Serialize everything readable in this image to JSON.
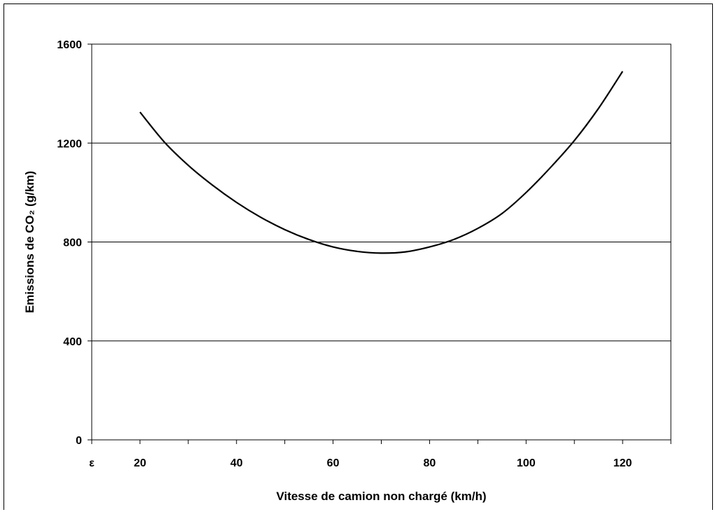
{
  "chart_data": {
    "type": "line",
    "xlabel": "Vitesse de camion non chargé (km/h)",
    "ylabel": "Emissions de CO₂ (g/km)",
    "xlim": [
      10,
      130
    ],
    "ylim": [
      0,
      1600
    ],
    "x_ticks": [
      10,
      20,
      30,
      40,
      50,
      60,
      70,
      80,
      90,
      100,
      110,
      120,
      130
    ],
    "x_tick_labels": [
      {
        "x": 10,
        "label": "ε"
      },
      {
        "x": 20,
        "label": "20"
      },
      {
        "x": 40,
        "label": "40"
      },
      {
        "x": 60,
        "label": "60"
      },
      {
        "x": 80,
        "label": "80"
      },
      {
        "x": 100,
        "label": "100"
      },
      {
        "x": 120,
        "label": "120"
      }
    ],
    "y_ticks": [
      0,
      400,
      800,
      1200,
      1600
    ],
    "y_tick_labels": [
      "0",
      "400",
      "800",
      "1200",
      "1600"
    ],
    "gridlines": "horizontal",
    "series": [
      {
        "color": "#000000",
        "x": [
          20,
          25,
          30,
          35,
          40,
          45,
          50,
          55,
          60,
          65,
          70,
          75,
          80,
          85,
          90,
          95,
          100,
          105,
          110,
          115,
          120
        ],
        "y": [
          1325,
          1205,
          1110,
          1030,
          960,
          900,
          850,
          810,
          780,
          762,
          755,
          760,
          780,
          810,
          855,
          915,
          1000,
          1100,
          1210,
          1340,
          1490
        ]
      }
    ]
  }
}
